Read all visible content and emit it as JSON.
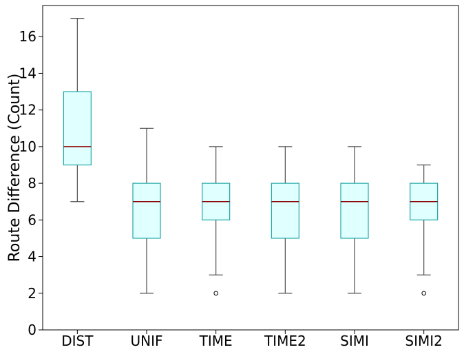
{
  "chart_data": {
    "type": "box",
    "title": "",
    "xlabel": "",
    "ylabel": "Route Difference (Count)",
    "ylim": [
      0,
      17.7
    ],
    "yticks": [
      0,
      2,
      4,
      6,
      8,
      10,
      12,
      14,
      16
    ],
    "grid": false,
    "categories": [
      "DIST",
      "UNIF",
      "TIME",
      "TIME2",
      "SIMI",
      "SIMI2"
    ],
    "boxes": [
      {
        "category": "DIST",
        "whisker_low": 7,
        "q1": 9,
        "median": 10,
        "q3": 13,
        "whisker_high": 17,
        "outliers": []
      },
      {
        "category": "UNIF",
        "whisker_low": 2,
        "q1": 5,
        "median": 7,
        "q3": 8,
        "whisker_high": 11,
        "outliers": []
      },
      {
        "category": "TIME",
        "whisker_low": 3,
        "q1": 6,
        "median": 7,
        "q3": 8,
        "whisker_high": 10,
        "outliers": [
          2
        ]
      },
      {
        "category": "TIME2",
        "whisker_low": 2,
        "q1": 5,
        "median": 7,
        "q3": 8,
        "whisker_high": 10,
        "outliers": []
      },
      {
        "category": "SIMI",
        "whisker_low": 2,
        "q1": 5,
        "median": 7,
        "q3": 8,
        "whisker_high": 10,
        "outliers": []
      },
      {
        "category": "SIMI2",
        "whisker_low": 3,
        "q1": 6,
        "median": 7,
        "q3": 8,
        "whisker_high": 9,
        "outliers": [
          2
        ]
      }
    ],
    "colors": {
      "box_fill": "#e0ffff",
      "box_edge": "#20a6a6",
      "median": "#8b0000",
      "whisker": "#4d4d4d",
      "axis": "#000000"
    }
  }
}
